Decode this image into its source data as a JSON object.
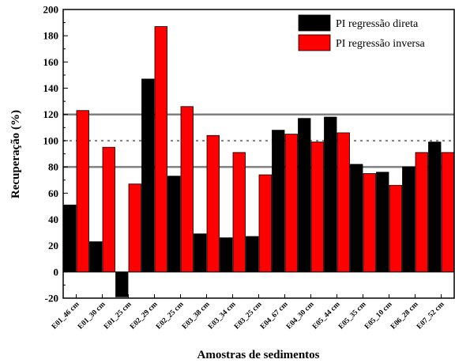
{
  "chart_data": {
    "type": "bar",
    "title": "",
    "xlabel": "Amostras de sedimentos",
    "ylabel": "Recuperação (%)",
    "ylim": [
      -20,
      200
    ],
    "yticks": [
      -20,
      0,
      20,
      40,
      60,
      80,
      100,
      120,
      140,
      160,
      180,
      200
    ],
    "categories": [
      "E01_46 cm",
      "E01_30 cm",
      "E01_25 cm",
      "E02_29 cm",
      "E02_25 cm",
      "E03_38 cm",
      "E03_34 cm",
      "E03_25 cm",
      "E04_67 cm",
      "E04_30 cm",
      "E05_44 cm",
      "E05_35 cm",
      "E05_10 cm",
      "E06_28 cm",
      "E07_52 cm"
    ],
    "series": [
      {
        "name": "PI regressão direta",
        "color": "#000000",
        "values": [
          51,
          23,
          -19,
          147,
          73,
          29,
          26,
          27,
          108,
          117,
          118,
          82,
          76,
          80,
          99
        ]
      },
      {
        "name": "PI regressão inversa",
        "color": "#ff0000",
        "values": [
          123,
          95,
          67,
          187,
          126,
          104,
          91,
          74,
          105,
          99,
          106,
          75,
          66,
          91,
          91
        ]
      }
    ],
    "reference_lines": [
      {
        "value": 80,
        "style": "solid",
        "color": "#808080"
      },
      {
        "value": 100,
        "style": "dotted",
        "color": "#808080"
      },
      {
        "value": 120,
        "style": "solid",
        "color": "#808080"
      }
    ],
    "legend_position": "top-right",
    "grid": false
  }
}
